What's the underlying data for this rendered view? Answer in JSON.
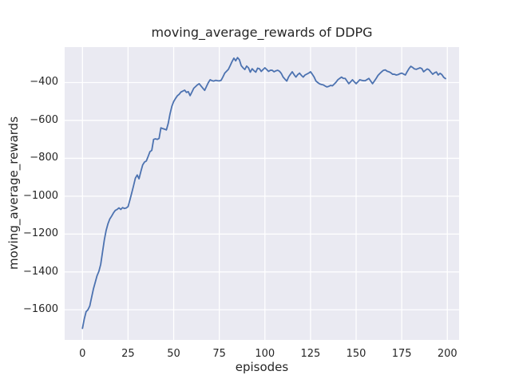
{
  "figure": {
    "colors": {
      "figure_background": "#FFFFFF",
      "plot_background": "#EAEAF2",
      "gridline": "#FFFFFF",
      "line": "#4C72B0",
      "text": "#262626"
    }
  },
  "chart_data": {
    "type": "line",
    "title": "moving_average_rewards of DDPG",
    "xlabel": "episodes",
    "ylabel": "moving_average_rewards",
    "xticks": [
      0,
      25,
      50,
      75,
      100,
      125,
      150,
      175,
      200
    ],
    "yticks": [
      -400,
      -600,
      -800,
      -1000,
      -1200,
      -1400,
      -1600
    ],
    "xlim": [
      -9.75,
      206.45
    ],
    "ylim": [
      -1759,
      -212.5
    ],
    "grid": true,
    "legend_position": "none",
    "series": [
      {
        "name": "moving_average_rewards",
        "x_start": 0,
        "x_step": 1,
        "values": [
          -1698,
          -1648,
          -1610,
          -1600,
          -1580,
          -1535,
          -1490,
          -1455,
          -1420,
          -1397,
          -1360,
          -1295,
          -1230,
          -1180,
          -1145,
          -1120,
          -1105,
          -1088,
          -1075,
          -1070,
          -1062,
          -1070,
          -1060,
          -1065,
          -1062,
          -1055,
          -1020,
          -983,
          -945,
          -905,
          -888,
          -908,
          -870,
          -835,
          -820,
          -814,
          -790,
          -765,
          -758,
          -700,
          -697,
          -700,
          -695,
          -639,
          -643,
          -646,
          -650,
          -616,
          -565,
          -525,
          -500,
          -484,
          -470,
          -462,
          -450,
          -445,
          -440,
          -452,
          -448,
          -469,
          -450,
          -430,
          -421,
          -412,
          -406,
          -418,
          -430,
          -441,
          -420,
          -400,
          -385,
          -390,
          -392,
          -388,
          -390,
          -391,
          -388,
          -370,
          -350,
          -340,
          -330,
          -310,
          -289,
          -271,
          -285,
          -268,
          -279,
          -310,
          -322,
          -331,
          -313,
          -322,
          -345,
          -327,
          -337,
          -345,
          -324,
          -327,
          -341,
          -331,
          -322,
          -331,
          -341,
          -335,
          -335,
          -343,
          -338,
          -335,
          -340,
          -352,
          -371,
          -382,
          -392,
          -370,
          -356,
          -343,
          -358,
          -371,
          -358,
          -350,
          -362,
          -371,
          -360,
          -355,
          -350,
          -343,
          -356,
          -371,
          -392,
          -400,
          -407,
          -410,
          -412,
          -418,
          -423,
          -420,
          -415,
          -417,
          -408,
          -398,
          -385,
          -378,
          -371,
          -378,
          -378,
          -392,
          -406,
          -396,
          -385,
          -396,
          -406,
          -396,
          -385,
          -388,
          -390,
          -390,
          -384,
          -378,
          -392,
          -406,
          -392,
          -378,
          -362,
          -352,
          -343,
          -335,
          -333,
          -340,
          -343,
          -348,
          -356,
          -356,
          -360,
          -358,
          -353,
          -350,
          -355,
          -360,
          -342,
          -326,
          -314,
          -320,
          -328,
          -330,
          -326,
          -322,
          -326,
          -343,
          -335,
          -328,
          -333,
          -345,
          -356,
          -348,
          -344,
          -360,
          -351,
          -358,
          -372,
          -379
        ]
      }
    ]
  }
}
